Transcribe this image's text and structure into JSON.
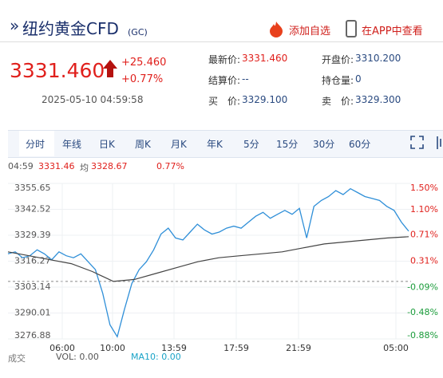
{
  "header": {
    "title": "纽约黄金CFD",
    "code": "(GC)",
    "add": "添加自选",
    "app": "在APP中查看"
  },
  "quote": {
    "price": "3331.460",
    "change": "+25.460",
    "pct": "+0.77%",
    "time": "2025-05-10 04:59:58",
    "fields": [
      {
        "label": "最新价:",
        "value": "3331.460"
      },
      {
        "label": "开盘价:",
        "value": "3310.200"
      },
      {
        "label": "结算价:",
        "value": "--"
      },
      {
        "label": "持仓量:",
        "value": "0"
      },
      {
        "label": "买　价:",
        "value": "3329.100"
      },
      {
        "label": "卖　价:",
        "value": "3329.300"
      }
    ]
  },
  "tabs": [
    "分时",
    "年线",
    "日K",
    "周K",
    "月K",
    "年K",
    "5分",
    "15分",
    "30分",
    "60分"
  ],
  "info": {
    "time": "04:59",
    "price": "3331.46",
    "avg_label": "均",
    "avg": "3328.67",
    "pct": "0.77%"
  },
  "chart_data": {
    "type": "line",
    "x_labels": [
      "06:00",
      "10:00",
      "13:59",
      "17:59",
      "21:59",
      "05:00"
    ],
    "ylim": [
      3276.88,
      3355.65
    ],
    "yticks": [
      3355.65,
      3342.52,
      3329.39,
      3316.27,
      3303.14,
      3290.01,
      3276.88
    ],
    "y2lim": [
      -0.88,
      1.5
    ],
    "y2ticks": [
      {
        "value": 1.5,
        "label": "1.50%"
      },
      {
        "value": 1.1,
        "label": "1.10%"
      },
      {
        "value": 0.71,
        "label": "0.71%"
      },
      {
        "value": 0.31,
        "label": "0.31%"
      },
      {
        "value": -0.09,
        "label": "-0.09%"
      },
      {
        "value": -0.48,
        "label": "-0.48%"
      },
      {
        "value": -0.88,
        "label": "-0.88%"
      }
    ],
    "series": [
      {
        "color": "#2f8fd8",
        "values": [
          3320,
          3321,
          3318,
          3319,
          3322,
          3320,
          3317,
          3321,
          3319,
          3318,
          3320,
          3316,
          3312,
          3300,
          3284,
          3278,
          3292,
          3305,
          3312,
          3316,
          3322,
          3330,
          3333,
          3328,
          3327,
          3331,
          3335,
          3332,
          3330,
          3331,
          3333,
          3334,
          3333,
          3336,
          3339,
          3341,
          3338,
          3340,
          3342,
          3340,
          3343,
          3328,
          3344,
          3347,
          3349,
          3352,
          3350,
          3353,
          3351,
          3349,
          3348,
          3347,
          3344,
          3342,
          3336,
          3331.46
        ]
      },
      {
        "color": "#444444",
        "values": [
          3321,
          3319,
          3317,
          3315,
          3311,
          3306,
          3307,
          3310,
          3313,
          3316,
          3318,
          3319,
          3320,
          3321,
          3323,
          3325,
          3326,
          3327,
          3328,
          3328.67
        ]
      }
    ]
  },
  "footer": {
    "vol_label": "成交",
    "vol": "VOL: 0.00",
    "ma": "MA10: 0.00"
  }
}
